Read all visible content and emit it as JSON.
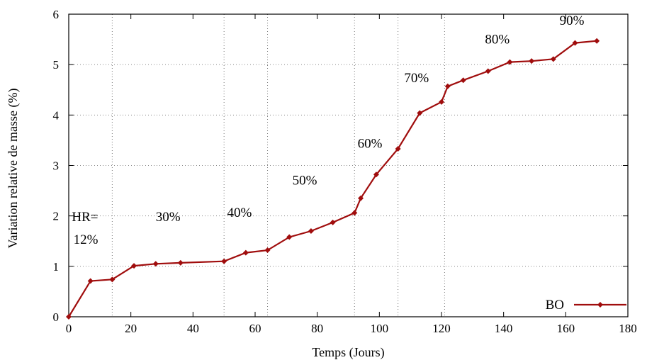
{
  "chart_data": {
    "type": "line",
    "xlabel": "Temps (Jours)",
    "ylabel": "Variation relative de masse (%)",
    "xlim": [
      0,
      180
    ],
    "ylim": [
      0,
      6
    ],
    "xticks": [
      "0",
      "20",
      "40",
      "60",
      "80",
      "100",
      "120",
      "140",
      "160",
      "180"
    ],
    "yticks": [
      "0",
      "1",
      "2",
      "3",
      "4",
      "5",
      "6"
    ],
    "grid": "dotted vertical lines at humidity changes, dotted horizontal lines at y ticks",
    "step_lines_x": [
      14,
      50,
      64,
      92,
      106,
      121
    ],
    "legend_position": "bottom-right",
    "series": [
      {
        "name": "BO",
        "color": "#a00d0d",
        "marker": "diamond",
        "x": [
          0,
          7,
          14,
          21,
          28,
          36,
          50,
          57,
          64,
          71,
          78,
          85,
          92,
          94,
          99,
          106,
          113,
          120,
          122,
          127,
          135,
          142,
          149,
          156,
          163,
          170
        ],
        "y": [
          0,
          0.71,
          0.74,
          1.01,
          1.05,
          1.07,
          1.1,
          1.27,
          1.32,
          1.58,
          1.7,
          1.87,
          2.06,
          2.35,
          2.82,
          3.33,
          4.04,
          4.26,
          4.57,
          4.69,
          4.87,
          5.05,
          5.07,
          5.11,
          5.43,
          5.47
        ]
      }
    ],
    "annotations": [
      {
        "text": "HR=",
        "x": 1,
        "y": 1.9
      },
      {
        "text": "12%",
        "x": 1.5,
        "y": 1.45
      },
      {
        "text": "30%",
        "x": 28,
        "y": 1.9
      },
      {
        "text": "40%",
        "x": 51,
        "y": 1.98
      },
      {
        "text": "50%",
        "x": 72,
        "y": 2.62
      },
      {
        "text": "60%",
        "x": 93,
        "y": 3.35
      },
      {
        "text": "70%",
        "x": 108,
        "y": 4.65
      },
      {
        "text": "80%",
        "x": 134,
        "y": 5.42
      },
      {
        "text": "90%",
        "x": 158,
        "y": 5.79
      }
    ]
  }
}
